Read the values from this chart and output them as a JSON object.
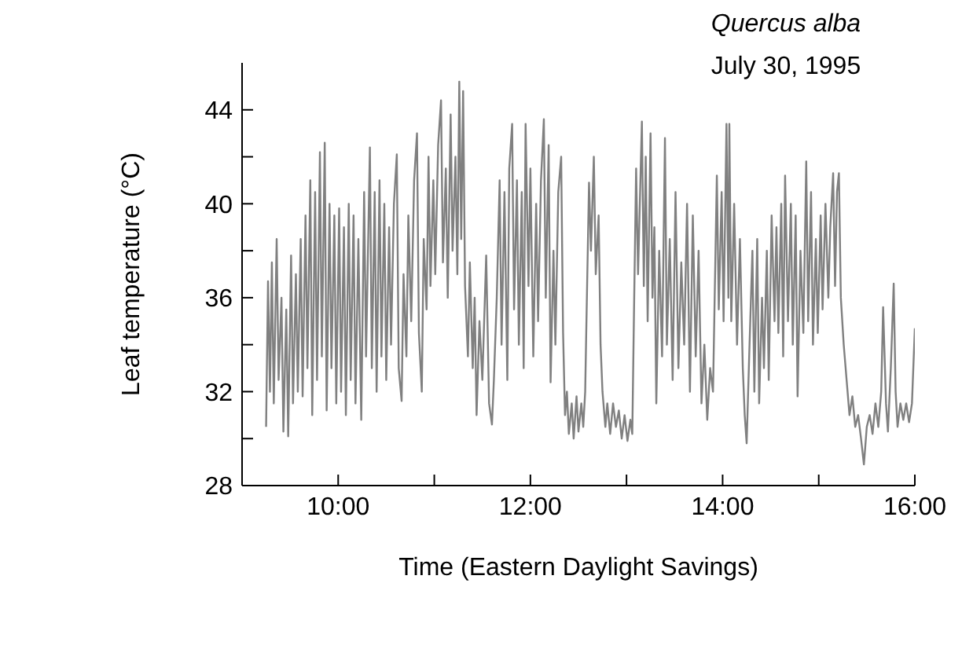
{
  "chart_data": {
    "type": "line",
    "title": "Quercus alba",
    "subtitle": "July 30, 1995",
    "xlabel": "Time (Eastern Daylight Savings)",
    "ylabel": "Leaf temperature (°C)",
    "xlim": [
      9,
      16
    ],
    "xticks": [
      {
        "value": 10,
        "label": "10:00"
      },
      {
        "value": 11,
        "label": null
      },
      {
        "value": 12,
        "label": "12:00"
      },
      {
        "value": 13,
        "label": null
      },
      {
        "value": 14,
        "label": "14:00"
      },
      {
        "value": 15,
        "label": null
      },
      {
        "value": 16,
        "label": "16:00"
      }
    ],
    "ylim": [
      28,
      46
    ],
    "yticks": [
      28,
      {
        "value": 30,
        "label": null
      },
      32,
      {
        "value": 34,
        "label": null
      },
      36,
      {
        "value": 38,
        "label": null
      },
      40,
      {
        "value": 42,
        "label": null
      },
      44
    ],
    "grid": false,
    "marker": "none",
    "line_style": "solid",
    "x": [
      9.25,
      9.27,
      9.29,
      9.31,
      9.33,
      9.36,
      9.38,
      9.41,
      9.43,
      9.46,
      9.48,
      9.51,
      9.53,
      9.56,
      9.58,
      9.61,
      9.63,
      9.66,
      9.68,
      9.71,
      9.73,
      9.76,
      9.78,
      9.81,
      9.83,
      9.86,
      9.88,
      9.91,
      9.93,
      9.96,
      9.98,
      10.01,
      10.03,
      10.06,
      10.08,
      10.11,
      10.13,
      10.16,
      10.18,
      10.21,
      10.24,
      10.27,
      10.29,
      10.33,
      10.35,
      10.38,
      10.4,
      10.43,
      10.45,
      10.48,
      10.5,
      10.53,
      10.55,
      10.58,
      10.61,
      10.63,
      10.66,
      10.68,
      10.71,
      10.73,
      10.76,
      10.79,
      10.82,
      10.84,
      10.87,
      10.89,
      10.92,
      10.94,
      10.96,
      10.99,
      11.01,
      11.04,
      11.07,
      11.09,
      11.12,
      11.14,
      11.17,
      11.19,
      11.22,
      11.24,
      11.26,
      11.28,
      11.3,
      11.32,
      11.35,
      11.37,
      11.4,
      11.42,
      11.44,
      11.47,
      11.5,
      11.54,
      11.57,
      11.6,
      11.62,
      11.65,
      11.68,
      11.7,
      11.73,
      11.76,
      11.78,
      11.81,
      11.83,
      11.86,
      11.88,
      11.91,
      11.93,
      11.95,
      11.98,
      12,
      12.03,
      12.06,
      12.08,
      12.11,
      12.14,
      12.16,
      12.19,
      12.21,
      12.24,
      12.26,
      12.29,
      12.32,
      12.34,
      12.36,
      12.38,
      12.4,
      12.43,
      12.45,
      12.48,
      12.5,
      12.53,
      12.55,
      12.57,
      12.58,
      12.61,
      12.63,
      12.66,
      12.68,
      12.71,
      12.73,
      12.75,
      12.78,
      12.8,
      12.83,
      12.86,
      12.89,
      12.92,
      12.95,
      12.98,
      13.01,
      13.04,
      13.06,
      13.08,
      13.1,
      13.12,
      13.16,
      13.18,
      13.2,
      13.22,
      13.25,
      13.27,
      13.29,
      13.31,
      13.34,
      13.37,
      13.4,
      13.42,
      13.45,
      13.48,
      13.51,
      13.54,
      13.57,
      13.6,
      13.63,
      13.66,
      13.69,
      13.72,
      13.75,
      13.78,
      13.81,
      13.84,
      13.87,
      13.9,
      13.94,
      13.96,
      13.99,
      14.01,
      14.04,
      14.06,
      14.07,
      14.09,
      14.12,
      14.15,
      14.18,
      14.21,
      14.23,
      14.25,
      14.28,
      14.31,
      14.33,
      14.36,
      14.38,
      14.41,
      14.43,
      14.46,
      14.48,
      14.51,
      14.54,
      14.56,
      14.58,
      14.61,
      14.63,
      14.65,
      14.68,
      14.71,
      14.73,
      14.76,
      14.78,
      14.81,
      14.84,
      14.87,
      14.89,
      14.92,
      14.94,
      14.97,
      14.99,
      15.02,
      15.04,
      15.07,
      15.1,
      15.12,
      15.15,
      15.17,
      15.19,
      15.21,
      15.23,
      15.26,
      15.29,
      15.32,
      15.35,
      15.38,
      15.41,
      15.44,
      15.47,
      15.5,
      15.53,
      15.56,
      15.59,
      15.62,
      15.65,
      15.67,
      15.7,
      15.72,
      15.75,
      15.78,
      15.8,
      15.82,
      15.85,
      15.88,
      15.91,
      15.94,
      15.97,
      16
    ],
    "series": [
      {
        "color": "#808080",
        "values": [
          30.5,
          36.7,
          32,
          37.5,
          31.5,
          38.5,
          32.5,
          36,
          30.3,
          35.5,
          30.1,
          37.8,
          31.5,
          37,
          32,
          38.5,
          31.8,
          39.5,
          33,
          41,
          31,
          40.5,
          32.5,
          42.2,
          33.5,
          42.6,
          31.2,
          40,
          33,
          39.5,
          31.5,
          39.8,
          32,
          39,
          31,
          40,
          32.5,
          39.5,
          31.5,
          38.5,
          30.8,
          40.5,
          33.5,
          42.4,
          33,
          40.5,
          32,
          41,
          33.5,
          40,
          32.5,
          39,
          34,
          40,
          42.1,
          33,
          31.6,
          37,
          33.5,
          39.5,
          35,
          41,
          43,
          34.5,
          32,
          38.5,
          35.5,
          42,
          36.5,
          41,
          37,
          42.5,
          44.4,
          37.5,
          41.5,
          36,
          43.8,
          38,
          42,
          37,
          45.2,
          38.5,
          44.8,
          36.5,
          33.5,
          37.5,
          33,
          36,
          31,
          35,
          32.5,
          37.8,
          31.5,
          30.6,
          32.5,
          36,
          41,
          34,
          40.5,
          32.5,
          41.5,
          43.4,
          35.5,
          41,
          34,
          40.5,
          33,
          43.4,
          36.5,
          41.5,
          33.5,
          40,
          35,
          41,
          43.6,
          36,
          42.5,
          32.4,
          38,
          34,
          40.5,
          42,
          34.5,
          31,
          32,
          30.2,
          31.5,
          30,
          31.8,
          30.3,
          31.5,
          30.5,
          32,
          34.3,
          40.9,
          38,
          42,
          37,
          39.5,
          34,
          32,
          30.5,
          31.5,
          30.2,
          31.5,
          30.5,
          31.2,
          30,
          31,
          29.9,
          30.8,
          30.2,
          36,
          41.5,
          37,
          43.5,
          36.5,
          42,
          35,
          43,
          36,
          39,
          31.5,
          38,
          33.5,
          42.8,
          34,
          38.5,
          32.5,
          40.5,
          33,
          37.5,
          34,
          40,
          32,
          39.5,
          33.5,
          38,
          31.5,
          34,
          30.8,
          33,
          32,
          41.2,
          35.5,
          40.5,
          35,
          43.4,
          36,
          43.4,
          35,
          40,
          34,
          38.5,
          33,
          31,
          29.8,
          34,
          38,
          32,
          38.5,
          31.5,
          36,
          33,
          38,
          32.5,
          39.5,
          35,
          39,
          34.5,
          40,
          33.5,
          41.2,
          35,
          40,
          34,
          39.5,
          31.8,
          38,
          34.5,
          41.8,
          35,
          40.5,
          34,
          38.5,
          34.5,
          39.5,
          35.5,
          40,
          36,
          39,
          41.3,
          36.5,
          40.5,
          41.3,
          36,
          34,
          32.5,
          31,
          31.8,
          30.5,
          31,
          30,
          28.9,
          30.5,
          31,
          30.2,
          31.5,
          30.5,
          32,
          35.6,
          31.5,
          30.3,
          33,
          36.6,
          32,
          30.5,
          31.5,
          30.8,
          31.5,
          30.7,
          31.5,
          34.7
        ]
      }
    ]
  }
}
